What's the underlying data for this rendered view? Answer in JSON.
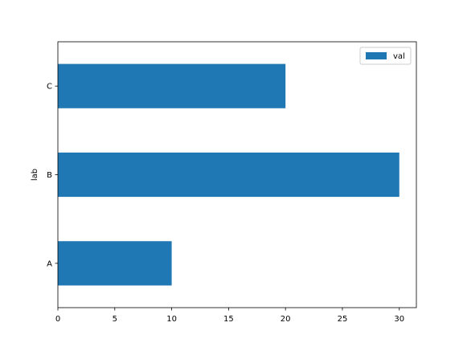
{
  "chart_data": {
    "type": "bar",
    "orientation": "horizontal",
    "categories": [
      "A",
      "B",
      "C"
    ],
    "series": [
      {
        "name": "val",
        "values": [
          10,
          30,
          20
        ]
      }
    ],
    "title": "",
    "xlabel": "",
    "ylabel": "lab",
    "xlim": [
      0,
      31.5
    ],
    "xticks": [
      0,
      5,
      10,
      15,
      20,
      25,
      30
    ],
    "grid": false,
    "legend": {
      "position": "top-right",
      "entries": [
        "val"
      ]
    },
    "colors": {
      "bar": "#1f77b4",
      "axis": "#000000",
      "background": "#ffffff"
    }
  }
}
